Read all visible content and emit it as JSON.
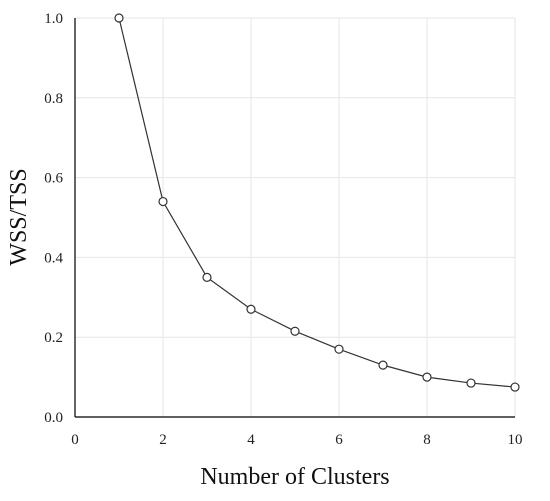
{
  "chart_data": {
    "type": "line",
    "xlabel": "Number of Clusters",
    "ylabel": "WSS/TSS",
    "xlim": [
      0,
      10
    ],
    "ylim": [
      0,
      1.0
    ],
    "x_ticks": [
      "0",
      "2",
      "4",
      "6",
      "8",
      "10"
    ],
    "y_ticks": [
      "0.0",
      "0.2",
      "0.4",
      "0.6",
      "0.8",
      "1.0"
    ],
    "grid": true,
    "series": [
      {
        "x": [
          1,
          2,
          3,
          4,
          5,
          6,
          7,
          8,
          9,
          10
        ],
        "values": [
          1.0,
          0.54,
          0.35,
          0.27,
          0.215,
          0.17,
          0.13,
          0.1,
          0.085,
          0.075
        ]
      }
    ],
    "colors": {
      "line": "#333333",
      "marker_fill": "#ffffff",
      "grid": "#e6e6e6"
    }
  }
}
